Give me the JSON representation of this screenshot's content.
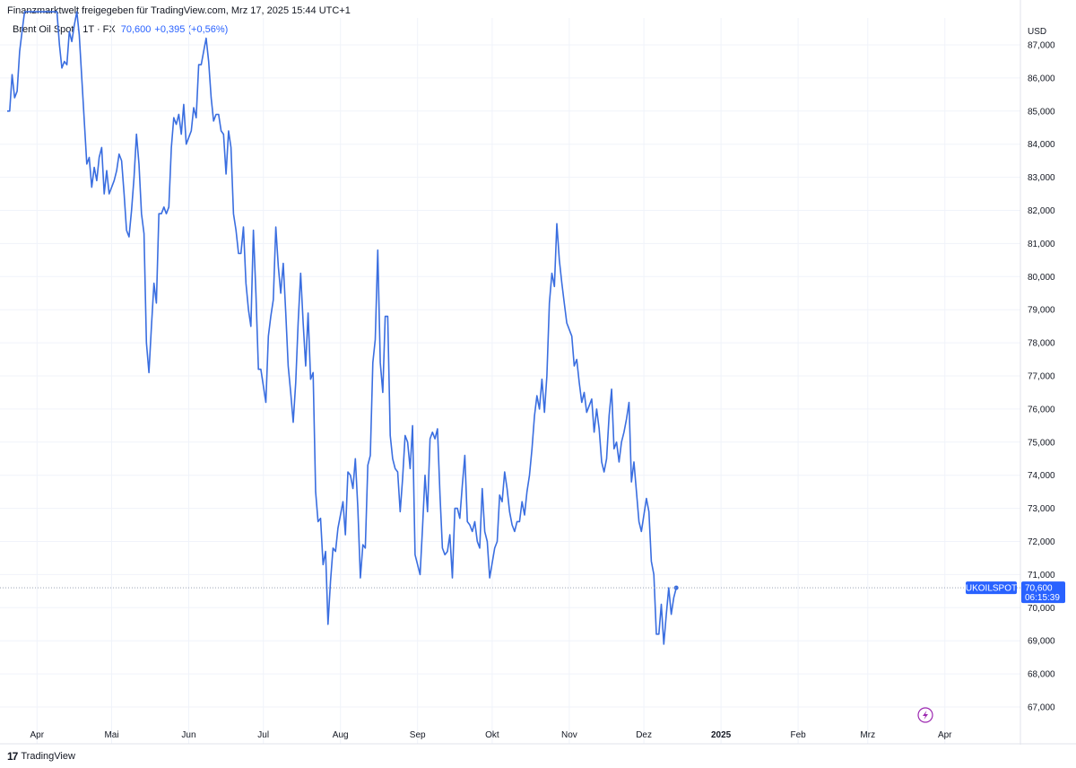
{
  "header": {
    "note": "Finanzmarktwelt freigegeben für TradingView.com, Mrz 17, 2025 15:44 UTC+1"
  },
  "legend": {
    "symbol": "Brent Oil Spot · 1T · FX",
    "value": "70,600",
    "change": "+0,395 (+0,56%)"
  },
  "footer": {
    "logo": "17",
    "brand": "TradingView"
  },
  "colors": {
    "line": "#3a6ee0",
    "label_bg": "#2962ff",
    "grid": "#f0f3fa"
  },
  "chart_data": {
    "type": "line",
    "currency": "USD",
    "ylim": [
      66.6,
      88.0
    ],
    "yticks": [
      67,
      68,
      69,
      70,
      71,
      72,
      73,
      74,
      75,
      76,
      77,
      78,
      79,
      80,
      81,
      82,
      83,
      84,
      85,
      86,
      87
    ],
    "ytick_labels": [
      "67,000",
      "68,000",
      "69,000",
      "70,000",
      "71,000",
      "72,000",
      "73,000",
      "74,000",
      "75,000",
      "76,000",
      "77,000",
      "78,000",
      "79,000",
      "80,000",
      "81,000",
      "82,000",
      "83,000",
      "84,000",
      "85,000",
      "86,000",
      "87,000"
    ],
    "x_range": [
      "2024-03-20",
      "2025-04-22"
    ],
    "x_ticks": [
      {
        "date": "2024-04-01",
        "label": "Apr",
        "bold": false
      },
      {
        "date": "2024-05-01",
        "label": "Mai",
        "bold": false
      },
      {
        "date": "2024-06-01",
        "label": "Jun",
        "bold": false
      },
      {
        "date": "2024-07-01",
        "label": "Jul",
        "bold": false
      },
      {
        "date": "2024-08-01",
        "label": "Aug",
        "bold": false
      },
      {
        "date": "2024-09-01",
        "label": "Sep",
        "bold": false
      },
      {
        "date": "2024-10-01",
        "label": "Okt",
        "bold": false
      },
      {
        "date": "2024-11-01",
        "label": "Nov",
        "bold": false
      },
      {
        "date": "2024-12-01",
        "label": "Dez",
        "bold": false
      },
      {
        "date": "2025-01-01",
        "label": "2025",
        "bold": true
      },
      {
        "date": "2025-02-01",
        "label": "Feb",
        "bold": false
      },
      {
        "date": "2025-03-01",
        "label": "Mrz",
        "bold": false
      },
      {
        "date": "2025-04-01",
        "label": "Apr",
        "bold": false
      }
    ],
    "series": [
      {
        "values": [
          [
            "2024-03-20",
            85.0
          ],
          [
            "2024-03-21",
            85.0
          ],
          [
            "2024-03-22",
            86.1
          ],
          [
            "2024-03-23",
            85.4
          ],
          [
            "2024-03-24",
            85.6
          ],
          [
            "2024-03-25",
            86.8
          ],
          [
            "2024-03-26",
            87.4
          ],
          [
            "2024-03-27",
            88.0
          ],
          [
            "2024-04-09",
            88.0
          ],
          [
            "2024-04-10",
            87.0
          ],
          [
            "2024-04-11",
            86.3
          ],
          [
            "2024-04-12",
            86.5
          ],
          [
            "2024-04-13",
            86.4
          ],
          [
            "2024-04-14",
            87.4
          ],
          [
            "2024-04-15",
            87.1
          ],
          [
            "2024-04-16",
            87.6
          ],
          [
            "2024-04-17",
            88.0
          ],
          [
            "2024-04-18",
            87.3
          ],
          [
            "2024-04-19",
            86.0
          ],
          [
            "2024-04-20",
            84.7
          ],
          [
            "2024-04-21",
            83.4
          ],
          [
            "2024-04-22",
            83.6
          ],
          [
            "2024-04-23",
            82.7
          ],
          [
            "2024-04-24",
            83.3
          ],
          [
            "2024-04-25",
            82.9
          ],
          [
            "2024-04-26",
            83.6
          ],
          [
            "2024-04-27",
            83.9
          ],
          [
            "2024-04-28",
            82.5
          ],
          [
            "2024-04-29",
            83.2
          ],
          [
            "2024-04-30",
            82.5
          ],
          [
            "2024-05-02",
            82.9
          ],
          [
            "2024-05-03",
            83.2
          ],
          [
            "2024-05-04",
            83.7
          ],
          [
            "2024-05-05",
            83.5
          ],
          [
            "2024-05-06",
            82.5
          ],
          [
            "2024-05-07",
            81.4
          ],
          [
            "2024-05-08",
            81.2
          ],
          [
            "2024-05-09",
            82.0
          ],
          [
            "2024-05-10",
            83.0
          ],
          [
            "2024-05-11",
            84.3
          ],
          [
            "2024-05-12",
            83.4
          ],
          [
            "2024-05-13",
            81.9
          ],
          [
            "2024-05-14",
            81.3
          ],
          [
            "2024-05-15",
            78.0
          ],
          [
            "2024-05-16",
            77.1
          ],
          [
            "2024-05-17",
            78.5
          ],
          [
            "2024-05-18",
            79.8
          ],
          [
            "2024-05-19",
            79.2
          ],
          [
            "2024-05-20",
            81.9
          ],
          [
            "2024-05-21",
            81.9
          ],
          [
            "2024-05-22",
            82.1
          ],
          [
            "2024-05-23",
            81.9
          ],
          [
            "2024-05-24",
            82.1
          ],
          [
            "2024-05-25",
            83.9
          ],
          [
            "2024-05-26",
            84.8
          ],
          [
            "2024-05-27",
            84.6
          ],
          [
            "2024-05-28",
            84.9
          ],
          [
            "2024-05-29",
            84.3
          ],
          [
            "2024-05-30",
            85.2
          ],
          [
            "2024-05-31",
            84.0
          ],
          [
            "2024-06-02",
            84.4
          ],
          [
            "2024-06-03",
            85.1
          ],
          [
            "2024-06-04",
            84.8
          ],
          [
            "2024-06-05",
            86.4
          ],
          [
            "2024-06-06",
            86.4
          ],
          [
            "2024-06-07",
            86.8
          ],
          [
            "2024-06-08",
            87.2
          ],
          [
            "2024-06-09",
            86.5
          ],
          [
            "2024-06-10",
            85.4
          ],
          [
            "2024-06-11",
            84.7
          ],
          [
            "2024-06-12",
            84.9
          ],
          [
            "2024-06-13",
            84.9
          ],
          [
            "2024-06-14",
            84.4
          ],
          [
            "2024-06-15",
            84.3
          ],
          [
            "2024-06-16",
            83.1
          ],
          [
            "2024-06-17",
            84.4
          ],
          [
            "2024-06-18",
            83.9
          ],
          [
            "2024-06-19",
            81.9
          ],
          [
            "2024-06-20",
            81.4
          ],
          [
            "2024-06-21",
            80.7
          ],
          [
            "2024-06-22",
            80.7
          ],
          [
            "2024-06-23",
            81.5
          ],
          [
            "2024-06-24",
            79.8
          ],
          [
            "2024-06-25",
            79.0
          ],
          [
            "2024-06-26",
            78.5
          ],
          [
            "2024-06-27",
            81.4
          ],
          [
            "2024-06-28",
            79.5
          ],
          [
            "2024-06-29",
            77.2
          ],
          [
            "2024-06-30",
            77.2
          ],
          [
            "2024-07-02",
            76.2
          ],
          [
            "2024-07-03",
            78.2
          ],
          [
            "2024-07-04",
            78.8
          ],
          [
            "2024-07-05",
            79.3
          ],
          [
            "2024-07-06",
            81.5
          ],
          [
            "2024-07-07",
            80.3
          ],
          [
            "2024-07-08",
            79.5
          ],
          [
            "2024-07-09",
            80.4
          ],
          [
            "2024-07-10",
            78.9
          ],
          [
            "2024-07-11",
            77.3
          ],
          [
            "2024-07-12",
            76.5
          ],
          [
            "2024-07-13",
            75.6
          ],
          [
            "2024-07-14",
            76.8
          ],
          [
            "2024-07-15",
            78.6
          ],
          [
            "2024-07-16",
            80.1
          ],
          [
            "2024-07-17",
            78.6
          ],
          [
            "2024-07-18",
            77.3
          ],
          [
            "2024-07-19",
            78.9
          ],
          [
            "2024-07-20",
            76.9
          ],
          [
            "2024-07-21",
            77.1
          ],
          [
            "2024-07-22",
            73.5
          ],
          [
            "2024-07-23",
            72.6
          ],
          [
            "2024-07-24",
            72.7
          ],
          [
            "2024-07-25",
            71.3
          ],
          [
            "2024-07-26",
            71.7
          ],
          [
            "2024-07-27",
            69.5
          ],
          [
            "2024-07-28",
            70.8
          ],
          [
            "2024-07-29",
            71.8
          ],
          [
            "2024-07-30",
            71.7
          ],
          [
            "2024-07-31",
            72.4
          ],
          [
            "2024-08-02",
            73.2
          ],
          [
            "2024-08-03",
            72.2
          ],
          [
            "2024-08-04",
            74.1
          ],
          [
            "2024-08-05",
            74.0
          ],
          [
            "2024-08-06",
            73.6
          ],
          [
            "2024-08-07",
            74.5
          ],
          [
            "2024-08-08",
            73.0
          ],
          [
            "2024-08-09",
            70.9
          ],
          [
            "2024-08-10",
            71.9
          ],
          [
            "2024-08-11",
            71.8
          ],
          [
            "2024-08-12",
            74.3
          ],
          [
            "2024-08-13",
            74.6
          ],
          [
            "2024-08-14",
            77.4
          ],
          [
            "2024-08-15",
            78.1
          ],
          [
            "2024-08-16",
            80.8
          ],
          [
            "2024-08-17",
            77.4
          ],
          [
            "2024-08-18",
            76.5
          ],
          [
            "2024-08-19",
            78.8
          ],
          [
            "2024-08-20",
            78.8
          ],
          [
            "2024-08-21",
            75.2
          ],
          [
            "2024-08-22",
            74.5
          ],
          [
            "2024-08-23",
            74.2
          ],
          [
            "2024-08-24",
            74.1
          ],
          [
            "2024-08-25",
            72.9
          ],
          [
            "2024-08-26",
            73.9
          ],
          [
            "2024-08-27",
            75.2
          ],
          [
            "2024-08-28",
            75.0
          ],
          [
            "2024-08-29",
            74.2
          ],
          [
            "2024-08-30",
            75.5
          ],
          [
            "2024-08-31",
            71.6
          ],
          [
            "2024-09-02",
            71.0
          ],
          [
            "2024-09-03",
            72.4
          ],
          [
            "2024-09-04",
            74.0
          ],
          [
            "2024-09-05",
            72.9
          ],
          [
            "2024-09-06",
            75.1
          ],
          [
            "2024-09-07",
            75.3
          ],
          [
            "2024-09-08",
            75.1
          ],
          [
            "2024-09-09",
            75.4
          ],
          [
            "2024-09-10",
            73.4
          ],
          [
            "2024-09-11",
            71.8
          ],
          [
            "2024-09-12",
            71.6
          ],
          [
            "2024-09-13",
            71.7
          ],
          [
            "2024-09-14",
            72.2
          ],
          [
            "2024-09-15",
            70.9
          ],
          [
            "2024-09-16",
            73.0
          ],
          [
            "2024-09-17",
            73.0
          ],
          [
            "2024-09-18",
            72.7
          ],
          [
            "2024-09-19",
            73.7
          ],
          [
            "2024-09-20",
            74.6
          ],
          [
            "2024-09-21",
            72.6
          ],
          [
            "2024-09-22",
            72.5
          ],
          [
            "2024-09-23",
            72.3
          ],
          [
            "2024-09-24",
            72.6
          ],
          [
            "2024-09-25",
            72.0
          ],
          [
            "2024-09-26",
            71.8
          ],
          [
            "2024-09-27",
            73.6
          ],
          [
            "2024-09-28",
            72.3
          ],
          [
            "2024-09-29",
            72.0
          ],
          [
            "2024-09-30",
            70.9
          ],
          [
            "2024-10-02",
            71.8
          ],
          [
            "2024-10-03",
            72.0
          ],
          [
            "2024-10-04",
            73.4
          ],
          [
            "2024-10-05",
            73.2
          ],
          [
            "2024-10-06",
            74.1
          ],
          [
            "2024-10-07",
            73.6
          ],
          [
            "2024-10-08",
            72.9
          ],
          [
            "2024-10-09",
            72.5
          ],
          [
            "2024-10-10",
            72.3
          ],
          [
            "2024-10-11",
            72.6
          ],
          [
            "2024-10-12",
            72.6
          ],
          [
            "2024-10-13",
            73.2
          ],
          [
            "2024-10-14",
            72.8
          ],
          [
            "2024-10-15",
            73.5
          ],
          [
            "2024-10-16",
            74.0
          ],
          [
            "2024-10-17",
            74.8
          ],
          [
            "2024-10-18",
            75.8
          ],
          [
            "2024-10-19",
            76.4
          ],
          [
            "2024-10-20",
            76.0
          ],
          [
            "2024-10-21",
            76.9
          ],
          [
            "2024-10-22",
            75.9
          ],
          [
            "2024-10-23",
            77.0
          ],
          [
            "2024-10-24",
            79.2
          ],
          [
            "2024-10-25",
            80.1
          ],
          [
            "2024-10-26",
            79.7
          ],
          [
            "2024-10-27",
            81.6
          ],
          [
            "2024-10-28",
            80.5
          ],
          [
            "2024-10-29",
            79.8
          ],
          [
            "2024-10-30",
            79.2
          ],
          [
            "2024-10-31",
            78.6
          ],
          [
            "2024-11-02",
            78.2
          ],
          [
            "2024-11-03",
            77.3
          ],
          [
            "2024-11-04",
            77.5
          ],
          [
            "2024-11-05",
            76.8
          ],
          [
            "2024-11-06",
            76.2
          ],
          [
            "2024-11-07",
            76.5
          ],
          [
            "2024-11-08",
            75.9
          ],
          [
            "2024-11-09",
            76.1
          ],
          [
            "2024-11-10",
            76.3
          ],
          [
            "2024-11-11",
            75.3
          ],
          [
            "2024-11-12",
            76.0
          ],
          [
            "2024-11-13",
            75.4
          ],
          [
            "2024-11-14",
            74.4
          ],
          [
            "2024-11-15",
            74.1
          ],
          [
            "2024-11-16",
            74.5
          ],
          [
            "2024-11-17",
            75.8
          ],
          [
            "2024-11-18",
            76.6
          ],
          [
            "2024-11-19",
            74.8
          ],
          [
            "2024-11-20",
            75.0
          ],
          [
            "2024-11-21",
            74.4
          ],
          [
            "2024-11-22",
            75.0
          ],
          [
            "2024-11-23",
            75.3
          ],
          [
            "2024-11-24",
            75.7
          ],
          [
            "2024-11-25",
            76.2
          ],
          [
            "2024-11-26",
            73.8
          ],
          [
            "2024-11-27",
            74.4
          ],
          [
            "2024-11-28",
            73.5
          ],
          [
            "2024-11-29",
            72.6
          ],
          [
            "2024-11-30",
            72.3
          ],
          [
            "2024-12-02",
            73.3
          ],
          [
            "2024-12-03",
            72.9
          ],
          [
            "2024-12-04",
            71.4
          ],
          [
            "2024-12-05",
            71.0
          ],
          [
            "2024-12-06",
            69.2
          ],
          [
            "2024-12-07",
            69.2
          ],
          [
            "2024-12-08",
            70.1
          ],
          [
            "2024-12-09",
            68.9
          ],
          [
            "2024-12-10",
            69.8
          ],
          [
            "2024-12-11",
            70.6
          ],
          [
            "2024-12-12",
            69.8
          ],
          [
            "2024-12-13",
            70.3
          ],
          [
            "2024-12-14",
            70.6
          ]
        ]
      }
    ],
    "last": {
      "symbol": "UKOILSPOT",
      "price": 70.6,
      "price_label": "70,600",
      "countdown": "06:15:39"
    }
  }
}
